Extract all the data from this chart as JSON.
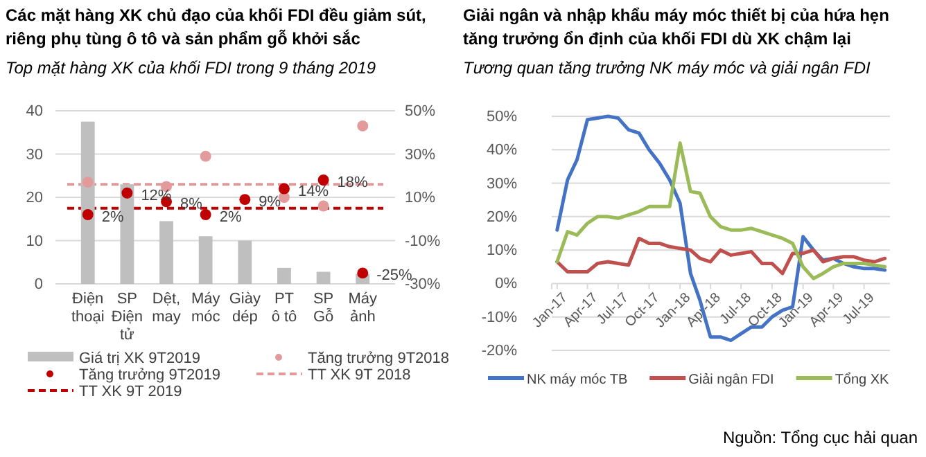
{
  "chart_data": [
    {
      "type": "bar",
      "title": "Các mặt hàng XK chủ đạo của khối FDI đều giảm sút, riêng phụ tùng ô tô và sản phẩm gỗ khởi sắc",
      "subtitle": "Top mặt hàng XK của khối FDI trong 9 tháng 2019",
      "categories": [
        "Điện thoại",
        "SP Điện tử",
        "Dệt, may",
        "Máy móc",
        "Giày dép",
        "PT ô tô",
        "SP Gỗ",
        "Máy ảnh"
      ],
      "series": [
        {
          "name": "Giá trị XK 9T2019",
          "type": "bar",
          "color": "#bfbfbf",
          "values": [
            37.5,
            23,
            14.5,
            11,
            10,
            3.7,
            2.8,
            2.3
          ]
        },
        {
          "name": "Tăng trưởng 9T2018",
          "type": "scatter",
          "axis": "y2",
          "color": "#e39a9a",
          "values": [
            17,
            null,
            15,
            29,
            null,
            10,
            6,
            43
          ]
        },
        {
          "name": "Tăng trưởng 9T2019",
          "type": "scatter",
          "axis": "y2",
          "color": "#c00000",
          "values": [
            2,
            12,
            8,
            2,
            9,
            14,
            18,
            -25
          ],
          "value_labels": [
            "2%",
            "12%",
            "8%",
            "2%",
            "9%",
            "14%",
            "18%",
            "-25%"
          ]
        }
      ],
      "ref_lines": [
        {
          "axis": "y2",
          "value": 16,
          "label": "TT XK 9T 2018",
          "color": "#e39a9a",
          "line_style": "dashed"
        },
        {
          "axis": "y2",
          "value": 5,
          "label": "TT XK 9T 2019",
          "color": "#c00000",
          "line_style": "dashed"
        }
      ],
      "ylim": [
        0,
        40
      ],
      "yticks": [
        0,
        10,
        20,
        30,
        40
      ],
      "y2lim": [
        -30,
        50
      ],
      "y2ticks": [
        {
          "value": -30,
          "label": "-30%"
        },
        {
          "value": -10,
          "label": "-10%"
        },
        {
          "value": 10,
          "label": "10%"
        },
        {
          "value": 30,
          "label": "30%"
        },
        {
          "value": 50,
          "label": "50%"
        }
      ],
      "marker": "circle",
      "grid": "y",
      "legend": "bottom"
    },
    {
      "type": "line",
      "title": "Giải ngân và nhập khẩu máy móc thiết bị của hứa hẹn tăng trưởng ổn định của khối FDI dù XK chậm lại",
      "subtitle": "Tương quan tăng trưởng NK máy móc và giải ngân FDI",
      "x": [
        "2017-01",
        "2017-02",
        "2017-03",
        "2017-04",
        "2017-05",
        "2017-06",
        "2017-07",
        "2017-08",
        "2017-09",
        "2017-10",
        "2017-11",
        "2017-12",
        "2018-01",
        "2018-02",
        "2018-03",
        "2018-04",
        "2018-05",
        "2018-06",
        "2018-07",
        "2018-08",
        "2018-09",
        "2018-10",
        "2018-11",
        "2018-12",
        "2019-01",
        "2019-02",
        "2019-03",
        "2019-04",
        "2019-05",
        "2019-06",
        "2019-07",
        "2019-08",
        "2019-09"
      ],
      "series": [
        {
          "name": "NK máy móc TB",
          "color": "#4472c4",
          "values": [
            16,
            31,
            37,
            49,
            49.5,
            50,
            49.5,
            46,
            45,
            40,
            36,
            31,
            24,
            3,
            -5,
            -16,
            -16,
            -17,
            -15,
            -13,
            -13,
            -10,
            -8,
            -7,
            14,
            10,
            7,
            7.5,
            6,
            5,
            4.5,
            4.5,
            4
          ]
        },
        {
          "name": "Giải ngân FDI",
          "color": "#c0504d",
          "values": [
            6.5,
            3.5,
            3.5,
            3.5,
            6,
            6.5,
            6,
            5.5,
            13.5,
            12,
            12,
            11,
            10.5,
            10,
            7.5,
            6.5,
            10,
            8.5,
            9,
            9.5,
            6,
            6,
            3,
            9,
            9,
            10,
            6.5,
            7.5,
            8,
            8,
            7,
            6.5,
            7.5
          ]
        },
        {
          "name": "Tổng XK",
          "color": "#9bbb59",
          "values": [
            6.5,
            15.5,
            14.5,
            18,
            20,
            20,
            19.5,
            20.5,
            21.5,
            23,
            23,
            23,
            42,
            27.5,
            27,
            20,
            17,
            16,
            16,
            16.5,
            15.5,
            14.5,
            13.5,
            12,
            5,
            1.5,
            3,
            5,
            6,
            6,
            6,
            5.5,
            5
          ]
        }
      ],
      "xlim": [
        "2016-12-16",
        "2019-09-16"
      ],
      "xticks": [
        {
          "value": "2017-01",
          "label": "Jan-17"
        },
        {
          "value": "2017-04",
          "label": "Apr-17"
        },
        {
          "value": "2017-07",
          "label": "Jul-17"
        },
        {
          "value": "2017-10",
          "label": "Oct-17"
        },
        {
          "value": "2018-01",
          "label": "Jan-18"
        },
        {
          "value": "2018-04",
          "label": "Apr-18"
        },
        {
          "value": "2018-07",
          "label": "Jul-18"
        },
        {
          "value": "2018-10",
          "label": "Oct-18"
        },
        {
          "value": "2019-01",
          "label": "Jan-19"
        },
        {
          "value": "2019-04",
          "label": "Apr-19"
        },
        {
          "value": "2019-07",
          "label": "Jul-19"
        }
      ],
      "ylim": [
        -20,
        50
      ],
      "yticks": [
        {
          "value": -20,
          "label": "-20%"
        },
        {
          "value": -10,
          "label": "-10%"
        },
        {
          "value": 0,
          "label": "0%"
        },
        {
          "value": 10,
          "label": "10%"
        },
        {
          "value": 20,
          "label": "20%"
        },
        {
          "value": 30,
          "label": "30%"
        },
        {
          "value": 40,
          "label": "40%"
        },
        {
          "value": 50,
          "label": "50%"
        }
      ],
      "grid": "y",
      "legend": "bottom",
      "line_style": "solid",
      "marker": "none",
      "annotations": [
        "Nguồn: Tổng cục hải quan"
      ]
    }
  ]
}
